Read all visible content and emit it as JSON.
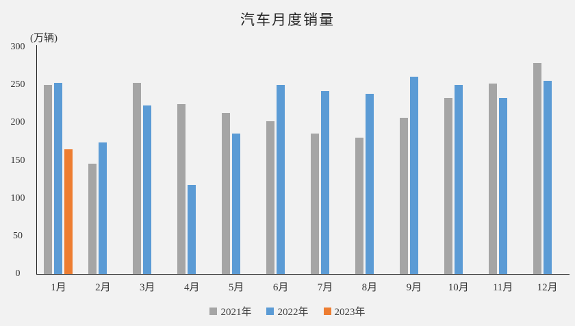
{
  "chart_data": {
    "type": "bar",
    "title": "汽车月度销量",
    "unit_label": "(万辆)",
    "categories": [
      "1月",
      "2月",
      "3月",
      "4月",
      "5月",
      "6月",
      "7月",
      "8月",
      "9月",
      "10月",
      "11月",
      "12月"
    ],
    "series": [
      {
        "name": "2021年",
        "color": "#a5a5a5",
        "values": [
          250,
          146,
          253,
          225,
          213,
          202,
          186,
          180,
          207,
          233,
          252,
          279
        ]
      },
      {
        "name": "2022年",
        "color": "#5b9bd5",
        "values": [
          253,
          174,
          223,
          118,
          186,
          250,
          242,
          238,
          261,
          250,
          233,
          256
        ]
      },
      {
        "name": "2023年",
        "color": "#ed7d31",
        "values": [
          165,
          null,
          null,
          null,
          null,
          null,
          null,
          null,
          null,
          null,
          null,
          null
        ]
      }
    ],
    "y_axis": {
      "min": 0,
      "max": 300,
      "step": 50,
      "ticks": [
        0,
        50,
        100,
        150,
        200,
        250,
        300
      ]
    },
    "xlabel": "",
    "ylabel": "(万辆)",
    "ylim": [
      0,
      300
    ],
    "grid": false,
    "legend_position": "bottom",
    "background_color": "#f2f2f2",
    "axis_color": "#262626"
  }
}
